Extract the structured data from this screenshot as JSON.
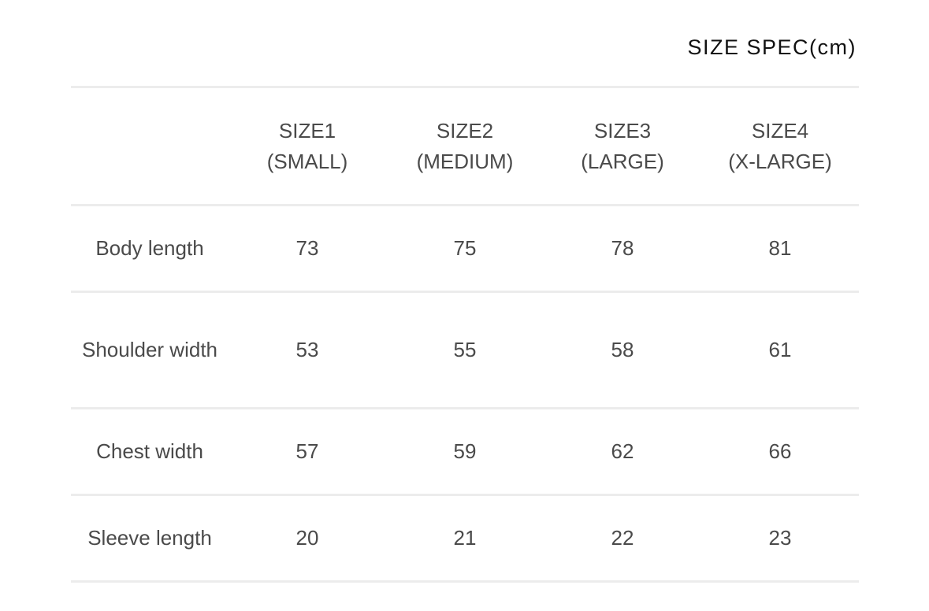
{
  "title": "SIZE SPEC(cm)",
  "columns": [
    {
      "line1": "SIZE1",
      "line2": "(SMALL)"
    },
    {
      "line1": "SIZE2",
      "line2": "(MEDIUM)"
    },
    {
      "line1": "SIZE3",
      "line2": "(LARGE)"
    },
    {
      "line1": "SIZE4",
      "line2": "(X-LARGE)"
    }
  ],
  "rows": [
    {
      "label": "Body length",
      "values": [
        "73",
        "75",
        "78",
        "81"
      ]
    },
    {
      "label": "Shoulder width",
      "values": [
        "53",
        "55",
        "58",
        "61"
      ]
    },
    {
      "label": "Chest width",
      "values": [
        "57",
        "59",
        "62",
        "66"
      ]
    },
    {
      "label": "Sleeve length",
      "values": [
        "20",
        "21",
        "22",
        "23"
      ]
    }
  ]
}
